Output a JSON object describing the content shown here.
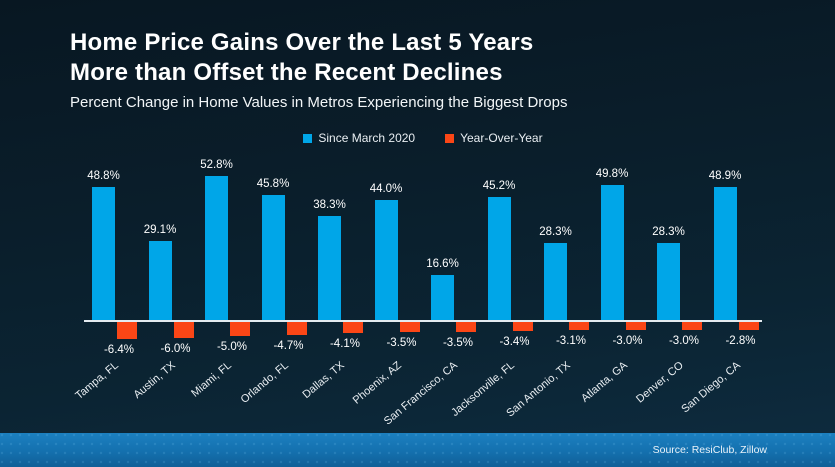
{
  "slide": {
    "title_line1": "Home Price Gains Over the Last 5 Years",
    "title_line2": "More than Offset the Recent Declines",
    "subtitle": "Percent Change in Home Values in Metros Experiencing the Biggest Drops",
    "source": "Source: ResiClub, Zillow"
  },
  "legend": [
    {
      "label": "Since March 2020",
      "color": "#00a6e8"
    },
    {
      "label": "Year-Over-Year",
      "color": "#fb4616"
    }
  ],
  "colors": {
    "background_top": "#081722",
    "background_bottom": "#0e2c40",
    "bar_blue": "#00a6e8",
    "bar_orange": "#fb4616",
    "axis_line": "#e4ebf0",
    "text": "#ffffff",
    "bottom_band_blue": "#1470ae"
  },
  "chart_data": {
    "type": "bar",
    "title": "Home Price Gains Over the Last 5 Years More than Offset the Recent Declines",
    "subtitle": "Percent Change in Home Values in Metros Experiencing the Biggest Drops",
    "categories": [
      "Tampa, FL",
      "Austin, TX",
      "Miami, FL",
      "Orlando, FL",
      "Dallas, TX",
      "Phoenix, AZ",
      "San Francisco, CA",
      "Jacksonville, FL",
      "San Antonio, TX",
      "Atlanta, GA",
      "Denver, CO",
      "San Diego, CA"
    ],
    "series": [
      {
        "name": "Since March 2020",
        "color": "#00a6e8",
        "values": [
          48.8,
          29.1,
          52.8,
          45.8,
          38.3,
          44.0,
          16.6,
          45.2,
          28.3,
          49.8,
          28.3,
          48.9
        ]
      },
      {
        "name": "Year-Over-Year",
        "color": "#fb4616",
        "values": [
          -6.4,
          -6.0,
          -5.0,
          -4.7,
          -4.1,
          -3.5,
          -3.5,
          -3.4,
          -3.1,
          -3.0,
          -3.0,
          -2.8
        ]
      }
    ],
    "value_labels": "shown, one decimal with % sign",
    "xlabel": "",
    "ylabel": "",
    "ylim": [
      -8,
      56
    ],
    "grid": false,
    "legend_position": "top-center",
    "baseline": 0
  }
}
